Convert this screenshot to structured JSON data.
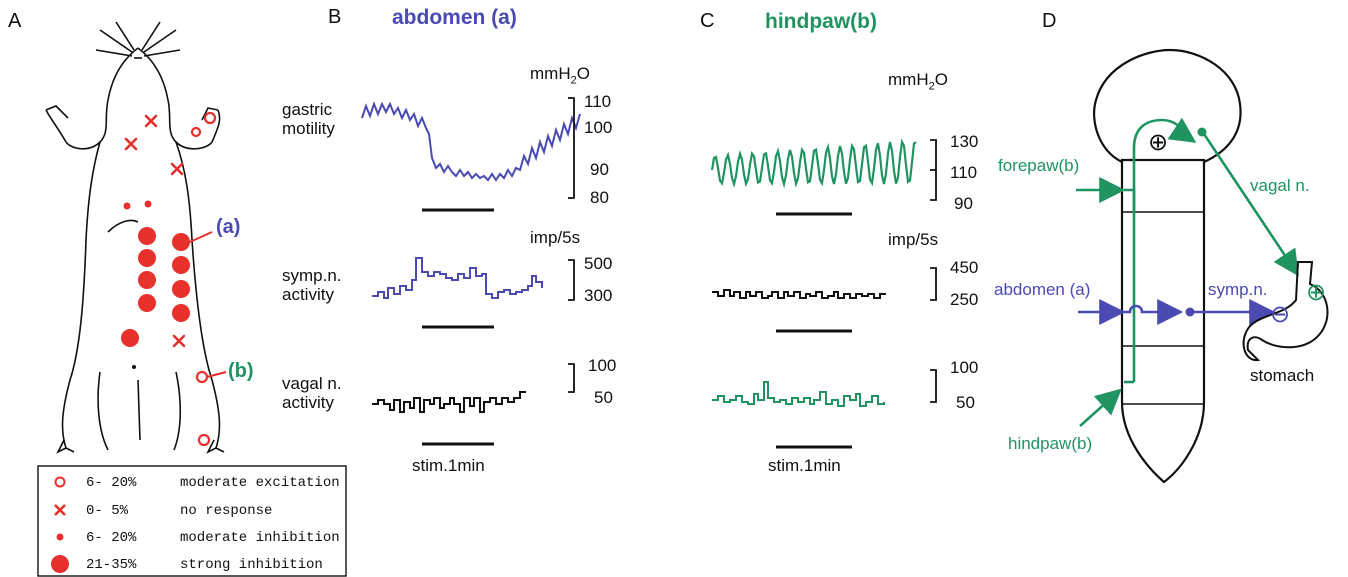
{
  "colors": {
    "blue": "#4a4ab2",
    "green": "#1f9460",
    "red": "#e8302c",
    "black": "#111111"
  },
  "panels": {
    "a": "A",
    "b": "B",
    "c": "C",
    "d": "D"
  },
  "panel_b": {
    "title": "abdomen (a)",
    "unit_pressure": "mmH",
    "unit_pressure_sub": "2",
    "unit_pressure_end": "O",
    "unit_rate": "imp/5s",
    "row1_label": [
      "gastric",
      "motility"
    ],
    "row1_ticks": [
      "110",
      "100",
      "90",
      "80"
    ],
    "row2_label": [
      "symp.n.",
      "activity"
    ],
    "row2_ticks": [
      "500",
      "300"
    ],
    "row3_label": [
      "vagal n.",
      "activity"
    ],
    "row3_ticks": [
      "100",
      "50"
    ],
    "stim": "stim.1min"
  },
  "panel_c": {
    "title": "hindpaw(b)",
    "unit_pressure": "mmH",
    "unit_pressure_sub": "2",
    "unit_pressure_end": "O",
    "unit_rate": "imp/5s",
    "row1_ticks": [
      "130",
      "110",
      "90"
    ],
    "row2_ticks": [
      "450",
      "250"
    ],
    "row3_ticks": [
      "100",
      "50"
    ],
    "stim": "stim.1min"
  },
  "panel_a": {
    "label_a": "(a)",
    "label_b": "(b)",
    "legend": [
      {
        "symbol": "open-circle",
        "range": "6-  20%",
        "desc": "moderate excitation"
      },
      {
        "symbol": "cross",
        "range": "0-   5%",
        "desc": "no response"
      },
      {
        "symbol": "small-dot",
        "range": "6-  20%",
        "desc": "moderate inhibition"
      },
      {
        "symbol": "large-dot",
        "range": "21-35%",
        "desc": "strong inhibition"
      }
    ]
  },
  "panel_d": {
    "brain_sign": "⊕",
    "forepaw": "forepaw(b)",
    "abdomen": "abdomen (a)",
    "hindpaw": "hindpaw(b)",
    "vagal": "vagal n.",
    "symp": "symp.n.",
    "stomach": "stomach",
    "plus": "⊕",
    "minus": "⊖"
  }
}
